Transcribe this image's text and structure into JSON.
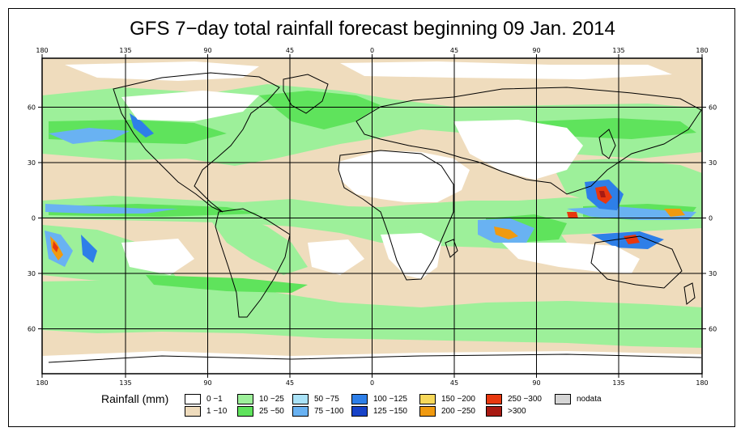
{
  "title": "GFS 7−day total rainfall forecast beginning 09 Jan. 2014",
  "x_ticks": [
    "180",
    "135",
    "90",
    "45",
    "0",
    "45",
    "90",
    "135",
    "180"
  ],
  "y_ticks": [
    "60",
    "30",
    "0",
    "30",
    "60"
  ],
  "legend": {
    "title": "Rainfall (mm)",
    "items": [
      {
        "label": "0 −1",
        "color": "#ffffff"
      },
      {
        "label": "1 −10",
        "color": "#efdcbd"
      },
      {
        "label": "10 −25",
        "color": "#9df09a"
      },
      {
        "label": "25 −50",
        "color": "#5fe35c"
      },
      {
        "label": "50 −75",
        "color": "#a9e2f7"
      },
      {
        "label": "75 −100",
        "color": "#69b2f2"
      },
      {
        "label": "100 −125",
        "color": "#2e7fe8"
      },
      {
        "label": "125 −150",
        "color": "#1843c8"
      },
      {
        "label": "150 −200",
        "color": "#f7d85a"
      },
      {
        "label": "200 −250",
        "color": "#f09a10"
      },
      {
        "label": "250 −300",
        "color": "#e8380f"
      },
      {
        "label": ">300",
        "color": "#a81a12"
      },
      {
        "label": "nodata",
        "color": "#d5d5d5"
      }
    ]
  }
}
